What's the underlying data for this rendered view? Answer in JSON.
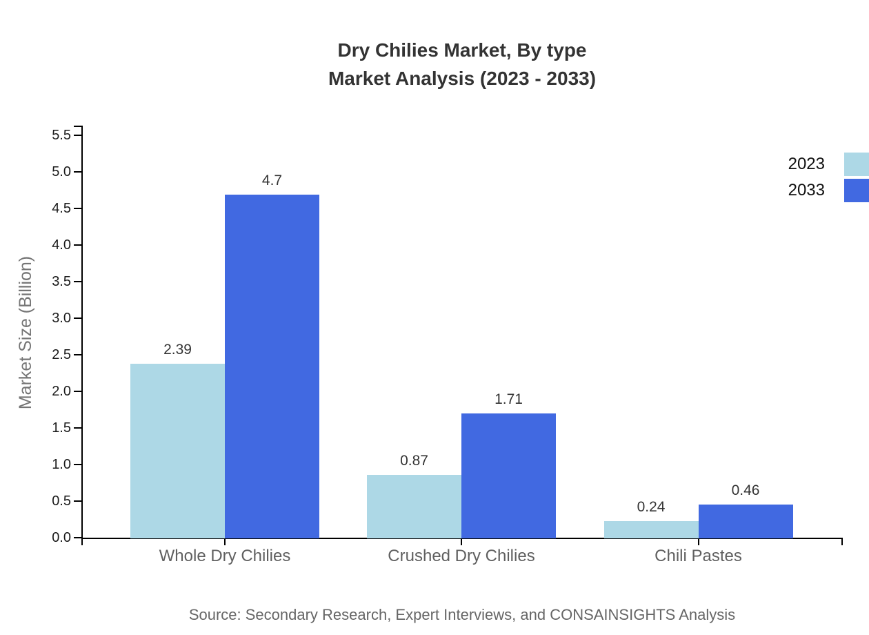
{
  "page": {
    "title_line1": "Dry Chilies Market, By type",
    "title_line2": "Market Analysis (2023 - 2033)",
    "source": "Source: Secondary Research, Expert Interviews, and CONSAINSIGHTS Analysis"
  },
  "chart_data": {
    "type": "bar",
    "title": "Dry Chilies Market, By type Market Analysis (2023 - 2033)",
    "categories": [
      "Whole Dry Chilies",
      "Crushed Dry Chilies",
      "Chili Pastes"
    ],
    "series": [
      {
        "name": "2023",
        "color": "#ADD8E6",
        "values": [
          2.39,
          0.87,
          0.24
        ],
        "labels": [
          "2.39",
          "0.87",
          "0.24"
        ]
      },
      {
        "name": "2033",
        "color": "#4169E1",
        "values": [
          4.7,
          1.71,
          0.46
        ],
        "labels": [
          "4.7",
          "1.71",
          "0.46"
        ]
      }
    ],
    "xlabel": "",
    "ylabel": "Market Size (Billion)",
    "ylim": [
      0,
      5.5
    ],
    "ytick_step": 0.5,
    "ytick_labels": [
      "0.0",
      "0.5",
      "1.0",
      "1.5",
      "2.0",
      "2.5",
      "3.0",
      "3.5",
      "4.0",
      "4.5",
      "5.0",
      "5.5"
    ],
    "grid": false,
    "legend_position": "top-right",
    "value_labels_shown": true,
    "colors": {
      "background": "#ffffff",
      "axis": "#000000",
      "title_text": "#333333",
      "ytick_text": "#1a1a1a",
      "category_text": "#606060",
      "axis_title_text": "#757575",
      "source_text": "#666666",
      "legend_text": "#111111"
    }
  }
}
